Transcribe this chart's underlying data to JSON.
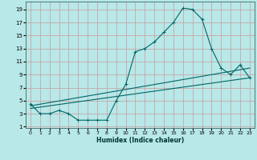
{
  "xlabel": "Humidex (Indice chaleur)",
  "bg_color": "#b8e8e8",
  "grid_color": "#cc9999",
  "line_color": "#006666",
  "xlim": [
    -0.5,
    23.5
  ],
  "ylim": [
    0.8,
    20.2
  ],
  "xticks": [
    0,
    1,
    2,
    3,
    4,
    5,
    6,
    7,
    8,
    9,
    10,
    11,
    12,
    13,
    14,
    15,
    16,
    17,
    18,
    19,
    20,
    21,
    22,
    23
  ],
  "yticks": [
    1,
    3,
    5,
    7,
    9,
    11,
    13,
    15,
    17,
    19
  ],
  "main_x": [
    0,
    1,
    2,
    3,
    4,
    5,
    6,
    7,
    8,
    9,
    10,
    11,
    12,
    13,
    14,
    15,
    16,
    17,
    18,
    19,
    20,
    21,
    22,
    23
  ],
  "main_y": [
    4.5,
    3.0,
    3.0,
    3.5,
    3.0,
    2.0,
    2.0,
    2.0,
    2.0,
    5.0,
    7.5,
    12.5,
    13.0,
    14.0,
    15.5,
    17.0,
    19.2,
    19.0,
    17.5,
    13.0,
    10.0,
    9.0,
    10.5,
    8.5
  ],
  "line2_x": [
    0,
    23
  ],
  "line2_y": [
    4.2,
    10.0
  ],
  "line3_x": [
    0,
    23
  ],
  "line3_y": [
    3.8,
    8.5
  ]
}
